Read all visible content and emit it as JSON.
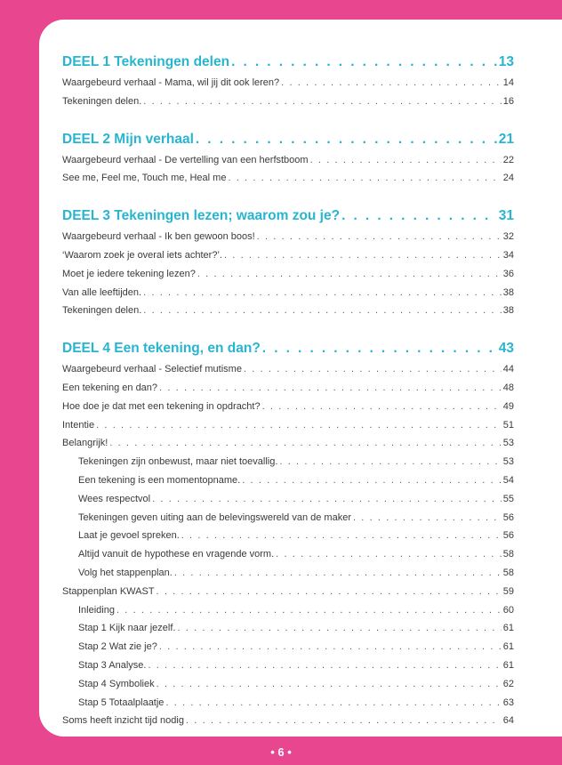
{
  "sections": [
    {
      "title": "DEEL 1 Tekeningen delen",
      "page": "13",
      "entries": [
        {
          "title": "Waargebeurd verhaal - Mama, wil jij dit ook leren?",
          "page": "14"
        },
        {
          "title": "Tekeningen delen.",
          "page": "16"
        }
      ]
    },
    {
      "title": "DEEL 2 Mijn verhaal",
      "page": "21",
      "entries": [
        {
          "title": "Waargebeurd verhaal - De vertelling van een herfstboom",
          "page": "22"
        },
        {
          "title": "See me, Feel me, Touch me, Heal me",
          "page": "24"
        }
      ]
    },
    {
      "title": "DEEL 3 Tekeningen lezen; waarom zou je?",
      "page": "31",
      "entries": [
        {
          "title": "Waargebeurd verhaal - Ik ben gewoon boos!",
          "page": "32"
        },
        {
          "title": "‘Waarom zoek je overal iets achter?’.",
          "page": "34"
        },
        {
          "title": "Moet je iedere tekening lezen?",
          "page": "36"
        },
        {
          "title": "Van alle leeftijden.",
          "page": "38"
        },
        {
          "title": "Tekeningen delen.",
          "page": "38"
        }
      ]
    },
    {
      "title": "DEEL 4 Een tekening, en dan?",
      "page": "43",
      "entries": [
        {
          "title": "Waargebeurd verhaal - Selectief mutisme",
          "page": "44"
        },
        {
          "title": "Een tekening en dan?",
          "page": "48"
        },
        {
          "title": "Hoe doe je dat met een tekening in opdracht?",
          "page": "49"
        },
        {
          "title": "Intentie",
          "page": "51"
        },
        {
          "title": "Belangrijk!",
          "page": "53"
        },
        {
          "title": "Tekeningen zijn onbewust, maar niet toevallig.",
          "page": "53",
          "sub": true
        },
        {
          "title": "Een tekening is een momentopname.",
          "page": "54",
          "sub": true
        },
        {
          "title": "Wees respectvol",
          "page": "55",
          "sub": true
        },
        {
          "title": "Tekeningen geven uiting aan de belevingswereld van de maker",
          "page": "56",
          "sub": true
        },
        {
          "title": "Laat je gevoel spreken.",
          "page": "56",
          "sub": true
        },
        {
          "title": "Altijd vanuit de hypothese en vragende vorm.",
          "page": "58",
          "sub": true
        },
        {
          "title": "Volg het stappenplan.",
          "page": "58",
          "sub": true
        },
        {
          "title": "Stappenplan KWAST",
          "page": "59"
        },
        {
          "title": "Inleiding",
          "page": "60",
          "sub": true
        },
        {
          "title": "Stap 1 Kijk naar jezelf.",
          "page": "61",
          "sub": true
        },
        {
          "title": "Stap 2 Wat zie je?",
          "page": "61",
          "sub": true
        },
        {
          "title": "Stap 3 Analyse.",
          "page": "61",
          "sub": true
        },
        {
          "title": "Stap 4 Symboliek",
          "page": "62",
          "sub": true
        },
        {
          "title": "Stap 5 Totaalplaatje",
          "page": "63",
          "sub": true
        },
        {
          "title": "Soms heeft inzicht tijd nodig",
          "page": "64"
        }
      ]
    }
  ],
  "folio": "• 6 •"
}
